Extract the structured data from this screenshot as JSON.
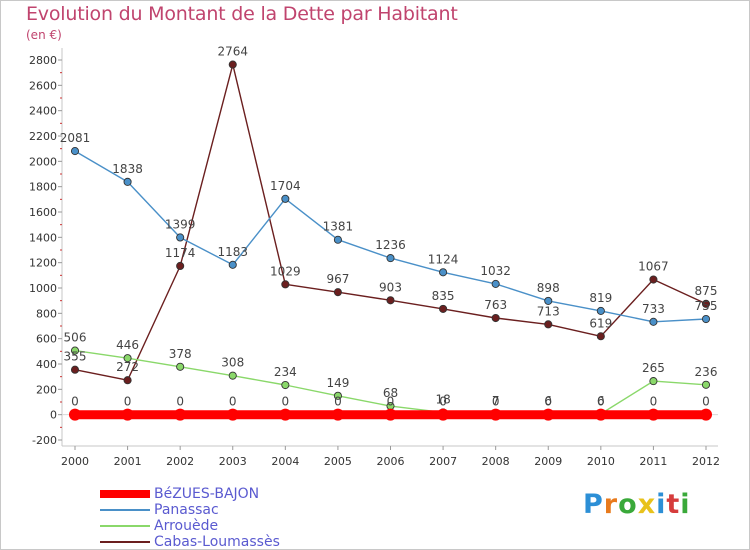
{
  "title": "Evolution du Montant de la Dette par Habitant",
  "subtitle": "(en €)",
  "logo": {
    "text": "Proxiti",
    "letter_colors": [
      "#2c8fd6",
      "#e87a1c",
      "#3aa93a",
      "#e8c21c",
      "#2c8fd6",
      "#d63c3c",
      "#3aa93a"
    ]
  },
  "chart_data": {
    "type": "line",
    "title": "Evolution du Montant de la Dette par Habitant",
    "ylabel": "(en €)",
    "xlabel": "",
    "ylim": [
      -200,
      2800
    ],
    "yticks": [
      -200,
      0,
      200,
      400,
      600,
      800,
      1000,
      1200,
      1400,
      1600,
      1800,
      2000,
      2200,
      2400,
      2600,
      2800
    ],
    "categories": [
      "2000",
      "2001",
      "2002",
      "2003",
      "2004",
      "2005",
      "2006",
      "2007",
      "2008",
      "2009",
      "2010",
      "2011",
      "2012"
    ],
    "grid": false,
    "legend": "bottom-left",
    "series": [
      {
        "name": "BéZUES-BAJON",
        "color": "#ff0000",
        "thick": true,
        "values": [
          0,
          0,
          0,
          0,
          0,
          0,
          0,
          0,
          0,
          0,
          0,
          0,
          0
        ]
      },
      {
        "name": "Panassac",
        "color": "#4a90c8",
        "values": [
          2081,
          1838,
          1399,
          1183,
          1704,
          1381,
          1236,
          1124,
          1032,
          898,
          819,
          733,
          755
        ]
      },
      {
        "name": "Arrouède",
        "color": "#8ad86a",
        "values": [
          506,
          446,
          378,
          308,
          234,
          149,
          68,
          18,
          7,
          6,
          6,
          265,
          236
        ]
      },
      {
        "name": "Cabas-Loumassès",
        "color": "#6b1f1f",
        "values": [
          355,
          272,
          1174,
          2764,
          1029,
          967,
          903,
          835,
          763,
          713,
          619,
          1067,
          875
        ]
      }
    ]
  }
}
